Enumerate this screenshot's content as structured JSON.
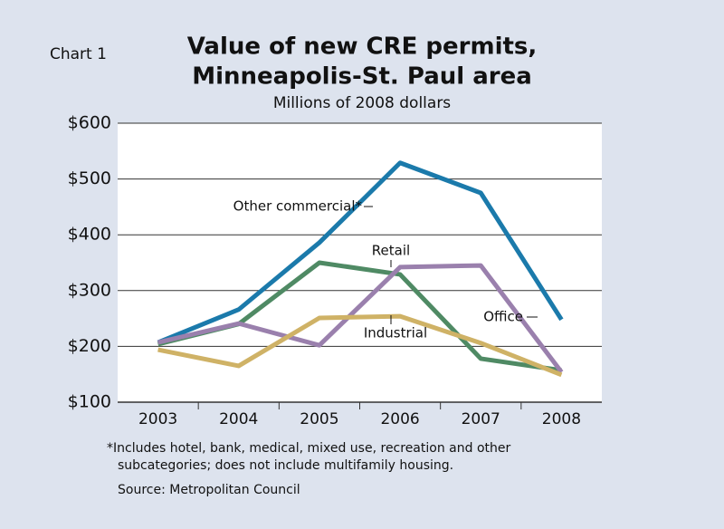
{
  "chart_data": {
    "type": "line",
    "label": "Chart 1",
    "title": [
      "Value of new CRE permits,",
      "Minneapolis-St. Paul area"
    ],
    "subtitle": "Millions of 2008 dollars",
    "categories": [
      "2003",
      "2004",
      "2005",
      "2006",
      "2007",
      "2008"
    ],
    "series": [
      {
        "name": "Other commercial*",
        "color": "#1b7aab",
        "values": [
          207,
          266,
          386,
          529,
          475,
          248
        ]
      },
      {
        "name": "Retail",
        "color": "#4f8a64",
        "values": [
          204,
          240,
          350,
          329,
          178,
          157
        ]
      },
      {
        "name": "Office",
        "color": "#9a80ad",
        "values": [
          207,
          241,
          202,
          342,
          345,
          154
        ]
      },
      {
        "name": "Industrial",
        "color": "#cfb266",
        "values": [
          194,
          165,
          251,
          254,
          206,
          149
        ]
      }
    ],
    "ylim": [
      100,
      600
    ],
    "yticks": [
      {
        "value": 100,
        "label": "$100"
      },
      {
        "value": 200,
        "label": "$200"
      },
      {
        "value": 300,
        "label": "$300"
      },
      {
        "value": 400,
        "label": "$400"
      },
      {
        "value": 500,
        "label": "$500"
      },
      {
        "value": 600,
        "label": "$600"
      }
    ],
    "grid": true,
    "footnote": [
      "*Includes hotel, bank, medical, mixed use, recreation and other",
      "subcategories; does not include multifamily housing."
    ],
    "source": "Source: Metropolitan Council"
  }
}
